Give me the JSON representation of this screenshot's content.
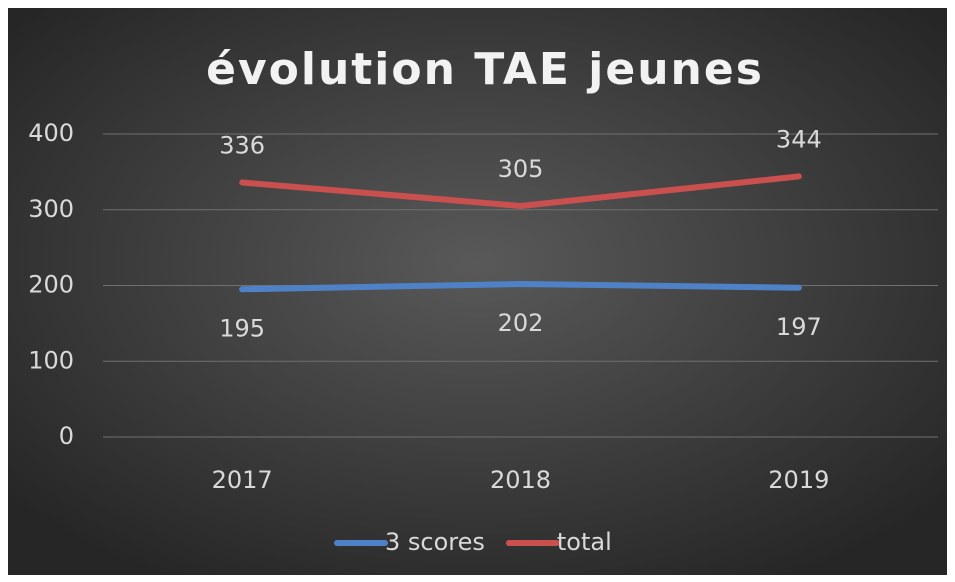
{
  "chart_data": {
    "type": "line",
    "title": "évolution TAE jeunes",
    "categories": [
      "2017",
      "2018",
      "2019"
    ],
    "series": [
      {
        "name": "3 scores",
        "color": "#4f81c7",
        "values": [
          195,
          202,
          197
        ]
      },
      {
        "name": "total",
        "color": "#c9504f",
        "values": [
          336,
          305,
          344
        ]
      }
    ],
    "ylim": [
      0,
      400
    ],
    "yticks": [
      0,
      100,
      200,
      300,
      400
    ],
    "grid": true,
    "legend": "bottom"
  }
}
